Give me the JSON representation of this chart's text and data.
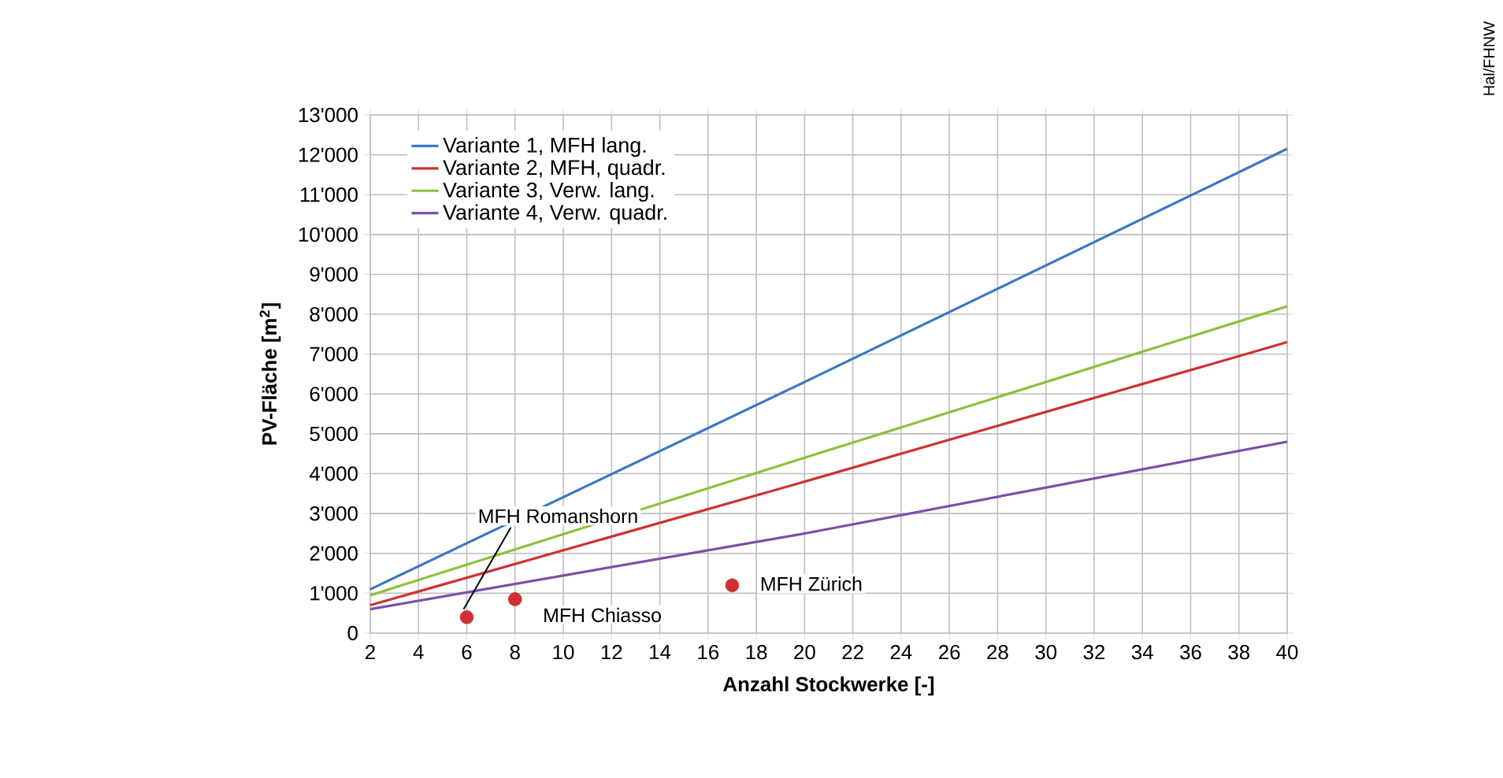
{
  "chart_data": {
    "type": "line",
    "xlabel": "Anzahl Stockwerke   [-]",
    "ylabel": "PV-Fläche   [m$^{2}$]",
    "xlim": [
      2,
      40
    ],
    "xticks": [
      2,
      4,
      6,
      8,
      10,
      12,
      14,
      16,
      18,
      20,
      22,
      24,
      26,
      28,
      30,
      32,
      34,
      36,
      38,
      40
    ],
    "ylim": [
      0,
      13000
    ],
    "yticks": [
      0,
      {
        "value": 1000,
        "label": "1'000"
      },
      {
        "value": 2000,
        "label": "2'000"
      },
      {
        "value": 3000,
        "label": "3'000"
      },
      {
        "value": 4000,
        "label": "4'000"
      },
      {
        "value": 5000,
        "label": "5'000"
      },
      {
        "value": 6000,
        "label": "6'000"
      },
      {
        "value": 7000,
        "label": "7'000"
      },
      {
        "value": 8000,
        "label": "8'000"
      },
      {
        "value": 9000,
        "label": "9'000"
      },
      {
        "value": 10000,
        "label": "10'000"
      },
      {
        "value": 11000,
        "label": "11'000"
      },
      {
        "value": 12000,
        "label": "12'000"
      },
      {
        "value": 13000,
        "label": "13'000"
      }
    ],
    "grid": true,
    "legend": "top left",
    "series": [
      {
        "name": "Variante 1, MFH lang.",
        "color": "#3a78c4",
        "x": [
          2,
          20,
          40
        ],
        "values": [
          1100,
          6300,
          12150
        ]
      },
      {
        "name": "Variante 2, MFH, quadr.",
        "color": "#cc3333",
        "x": [
          2,
          20,
          40
        ],
        "values": [
          700,
          3800,
          7300
        ]
      },
      {
        "name": "Variante 3, Verw. lang.",
        "color": "#8cc03c",
        "x": [
          2,
          20,
          40
        ],
        "values": [
          950,
          4400,
          8200
        ]
      },
      {
        "name": "Variante 4, Verw. quadr.",
        "color": "#7b4fa8",
        "x": [
          2,
          20,
          40
        ],
        "values": [
          600,
          2500,
          4800
        ]
      },
      {
        "type": "scatter",
        "color": "#d03030",
        "marker": "circle",
        "x": [
          6,
          8,
          17
        ],
        "values": [
          400,
          850,
          1200
        ]
      }
    ],
    "annotations": [
      {
        "text": "MFH Romanshorn",
        "x": 6,
        "y": 400
      },
      {
        "text": "MFH Chiasso",
        "x": 8,
        "y": 850
      },
      {
        "text": "MFH Zürich",
        "x": 17,
        "y": 1200
      },
      "Hal/FHNW"
    ]
  }
}
